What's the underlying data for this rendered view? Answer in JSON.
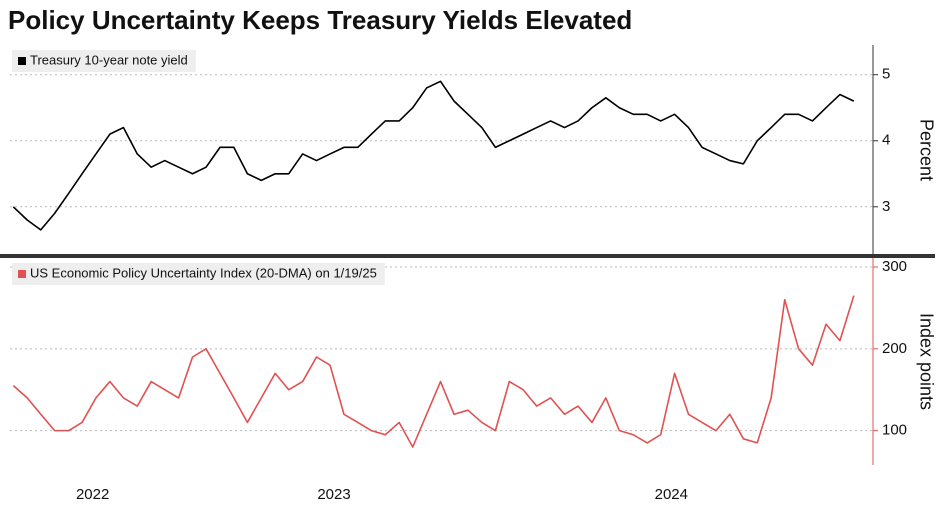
{
  "title": "Policy Uncertainty Keeps Treasury Yields Elevated",
  "chart_data": [
    {
      "type": "line",
      "x": [
        2022.5,
        2022.542,
        2022.583,
        2022.625,
        2022.667,
        2022.708,
        2022.75,
        2022.792,
        2022.833,
        2022.875,
        2022.917,
        2022.958,
        2023,
        2023.042,
        2023.083,
        2023.125,
        2023.167,
        2023.208,
        2023.25,
        2023.292,
        2023.333,
        2023.375,
        2023.417,
        2023.458,
        2023.5,
        2023.542,
        2023.583,
        2023.625,
        2023.667,
        2023.708,
        2023.75,
        2023.792,
        2023.833,
        2023.875,
        2023.917,
        2023.958,
        2024,
        2024.042,
        2024.083,
        2024.125,
        2024.167,
        2024.208,
        2024.25,
        2024.292,
        2024.333,
        2024.375,
        2024.417,
        2024.458,
        2024.5,
        2024.542,
        2024.583,
        2024.625,
        2024.667,
        2024.708,
        2024.75,
        2024.792,
        2024.833,
        2024.875,
        2024.917,
        2024.958,
        2025,
        2025.042
      ],
      "series": [
        {
          "name": "Treasury 10-year note yield",
          "color": "#000000",
          "values": [
            3.0,
            2.8,
            2.65,
            2.9,
            3.2,
            3.5,
            3.8,
            4.1,
            4.2,
            3.8,
            3.6,
            3.7,
            3.6,
            3.5,
            3.6,
            3.9,
            3.9,
            3.5,
            3.4,
            3.5,
            3.5,
            3.8,
            3.7,
            3.8,
            3.9,
            3.9,
            4.1,
            4.3,
            4.3,
            4.5,
            4.8,
            4.9,
            4.6,
            4.4,
            4.2,
            3.9,
            4.0,
            4.1,
            4.2,
            4.3,
            4.2,
            4.3,
            4.5,
            4.65,
            4.5,
            4.4,
            4.4,
            4.3,
            4.4,
            4.2,
            3.9,
            3.8,
            3.7,
            3.65,
            4.0,
            4.2,
            4.4,
            4.4,
            4.3,
            4.5,
            4.7,
            4.6
          ]
        }
      ],
      "xlim": [
        2022.49,
        2025.1
      ],
      "ylim": [
        2.27,
        5.45
      ],
      "yticks": [
        3,
        4,
        5
      ],
      "ylabel": "Percent",
      "grid": true
    },
    {
      "type": "line",
      "x": [
        2022.5,
        2022.542,
        2022.583,
        2022.625,
        2022.667,
        2022.708,
        2022.75,
        2022.792,
        2022.833,
        2022.875,
        2022.917,
        2022.958,
        2023,
        2023.042,
        2023.083,
        2023.125,
        2023.167,
        2023.208,
        2023.25,
        2023.292,
        2023.333,
        2023.375,
        2023.417,
        2023.458,
        2023.5,
        2023.542,
        2023.583,
        2023.625,
        2023.667,
        2023.708,
        2023.75,
        2023.792,
        2023.833,
        2023.875,
        2023.917,
        2023.958,
        2024,
        2024.042,
        2024.083,
        2024.125,
        2024.167,
        2024.208,
        2024.25,
        2024.292,
        2024.333,
        2024.375,
        2024.417,
        2024.458,
        2024.5,
        2024.542,
        2024.583,
        2024.625,
        2024.667,
        2024.708,
        2024.75,
        2024.792,
        2024.833,
        2024.875,
        2024.917,
        2024.958,
        2025,
        2025.042
      ],
      "series": [
        {
          "name": "US Economic Policy Uncertainty Index (20-DMA) on 1/19/25",
          "color": "#e05252",
          "values": [
            155,
            140,
            120,
            100,
            100,
            110,
            140,
            160,
            140,
            130,
            160,
            150,
            140,
            190,
            200,
            170,
            140,
            110,
            140,
            170,
            150,
            160,
            190,
            180,
            120,
            110,
            100,
            95,
            110,
            80,
            120,
            160,
            120,
            125,
            110,
            100,
            160,
            150,
            130,
            140,
            120,
            130,
            110,
            140,
            100,
            95,
            85,
            95,
            170,
            120,
            110,
            100,
            120,
            90,
            85,
            140,
            260,
            200,
            180,
            230,
            210,
            265
          ]
        }
      ],
      "xlim": [
        2022.49,
        2025.1
      ],
      "ylim": [
        58,
        311
      ],
      "yticks": [
        100,
        200,
        300
      ],
      "xticks": [
        {
          "value": 2022.74,
          "label": "2022"
        },
        {
          "value": 2023.47,
          "label": "2023"
        },
        {
          "value": 2024.49,
          "label": "2024"
        }
      ],
      "ylabel": "Index points",
      "grid": true
    }
  ]
}
